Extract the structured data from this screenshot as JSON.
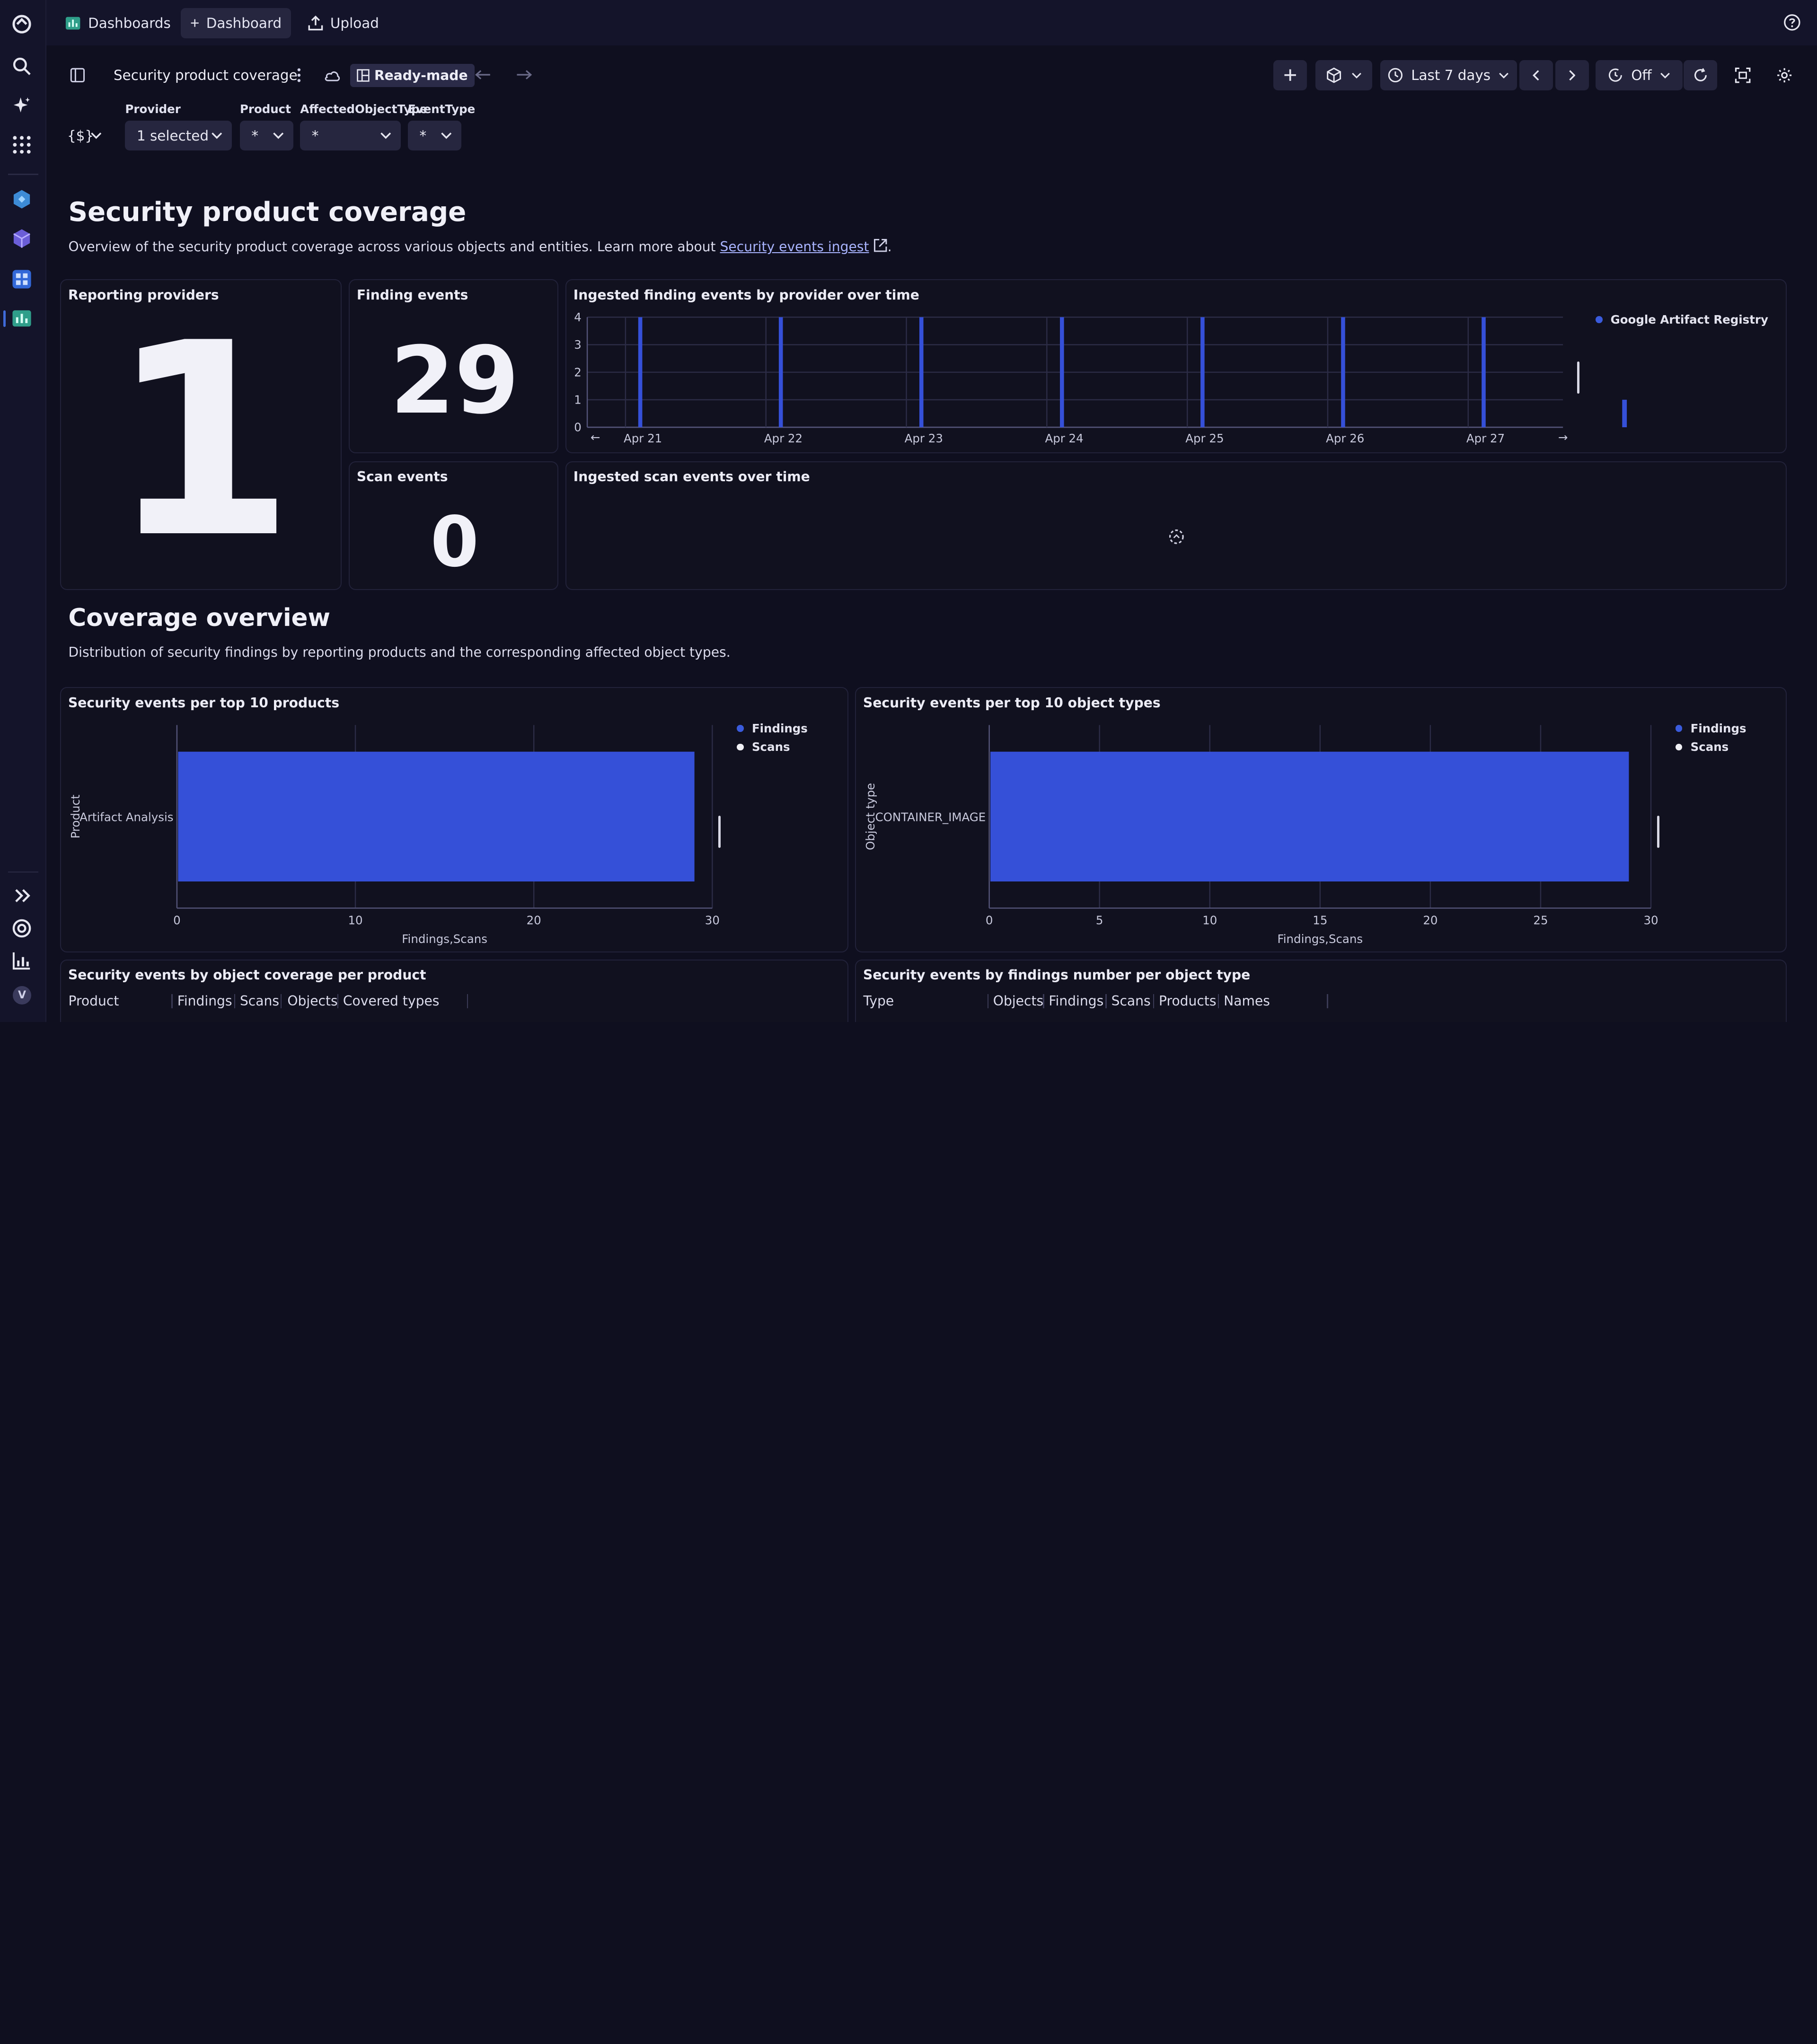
{
  "colors": {
    "accent": "#3550d8",
    "findings": "#3a5bdc",
    "scans": "#f0f0f5",
    "background": "#0f0f1f"
  },
  "topbar": {
    "dashboards_label": "Dashboards",
    "new_dashboard_label": "Dashboard",
    "upload_label": "Upload"
  },
  "toolbar": {
    "dashboard_name": "Security product coverage",
    "readymade_label": "Ready-made",
    "timeframe_label": "Last 7 days",
    "refresh_label": "Off"
  },
  "filters": {
    "variables_label": "{$}",
    "items": [
      {
        "label": "Provider",
        "value": "1 selected"
      },
      {
        "label": "Product",
        "value": "*"
      },
      {
        "label": "AffectedObjectType",
        "value": "*"
      },
      {
        "label": "EventType",
        "value": "*"
      }
    ]
  },
  "section1": {
    "title": "Security product coverage",
    "description": "Overview of the security product coverage across various objects and entities. Learn more about ",
    "link_text": "Security events ingest",
    "description_end": "."
  },
  "tiles": {
    "reporting_providers": {
      "title": "Reporting providers",
      "value": "1"
    },
    "finding_events": {
      "title": "Finding events",
      "value": "29"
    },
    "scan_events": {
      "title": "Scan events",
      "value": "0"
    },
    "ingested_findings": {
      "title": "Ingested finding events by provider over time",
      "legend": "Google Artifact Registry"
    },
    "ingested_scans": {
      "title": "Ingested scan events over time"
    }
  },
  "section2": {
    "title": "Coverage overview",
    "description": "Distribution of security findings by reporting products and the corresponding affected object types."
  },
  "bar_tiles": {
    "products": {
      "title": "Security events per top 10 products",
      "ylabel": "Product",
      "xlabel": "Findings,Scans",
      "legend_findings": "Findings",
      "legend_scans": "Scans"
    },
    "object_types": {
      "title": "Security events per top 10 object types",
      "ylabel": "Object type",
      "xlabel": "Findings,Scans",
      "legend_findings": "Findings",
      "legend_scans": "Scans"
    }
  },
  "tables": {
    "per_product": {
      "title": "Security events by object coverage per product",
      "columns": [
        "Product",
        "Findings",
        "Scans",
        "Objects",
        "Covered types"
      ]
    },
    "per_object_type": {
      "title": "Security events by findings number per object type",
      "columns": [
        "Type",
        "Objects",
        "Findings",
        "Scans",
        "Products",
        "Names"
      ]
    }
  },
  "chart_data": [
    {
      "type": "bar",
      "title": "Ingested finding events by provider over time",
      "x_ticks": [
        "Apr 21",
        "Apr 22",
        "Apr 23",
        "Apr 24",
        "Apr 25",
        "Apr 26",
        "Apr 27"
      ],
      "y_ticks": [
        0,
        1,
        2,
        3,
        4
      ],
      "ylim": [
        0,
        4
      ],
      "series": [
        {
          "name": "Google Artifact Registry",
          "x": [
            "Apr 20 19:00",
            "Apr 21 19:00",
            "Apr 22 19:00",
            "Apr 23 19:00",
            "Apr 24 19:00",
            "Apr 25 19:00",
            "Apr 26 19:00",
            "Apr 27 19:00"
          ],
          "values": [
            4,
            4,
            4,
            4,
            4,
            4,
            4,
            1
          ]
        }
      ],
      "legend": "top-right",
      "grid": true
    },
    {
      "type": "bar",
      "orientation": "horizontal",
      "title": "Security events per top 10 products",
      "categories": [
        "Artifact Analysis"
      ],
      "series": [
        {
          "name": "Findings",
          "values": [
            29
          ]
        },
        {
          "name": "Scans",
          "values": [
            0
          ]
        }
      ],
      "xlabel": "Findings,Scans",
      "ylabel": "Product",
      "xlim": [
        0,
        30
      ],
      "x_ticks": [
        0,
        10,
        20,
        30
      ],
      "legend": "top-right",
      "grid": true
    },
    {
      "type": "bar",
      "orientation": "horizontal",
      "title": "Security events per top 10 object types",
      "categories": [
        "CONTAINER_IMAGE"
      ],
      "series": [
        {
          "name": "Findings",
          "values": [
            29
          ]
        },
        {
          "name": "Scans",
          "values": [
            0
          ]
        }
      ],
      "xlabel": "Findings,Scans",
      "ylabel": "Object type",
      "xlim": [
        0,
        30
      ],
      "x_ticks": [
        0,
        5,
        10,
        15,
        20,
        25,
        30
      ],
      "legend": "top-right",
      "grid": true
    }
  ]
}
